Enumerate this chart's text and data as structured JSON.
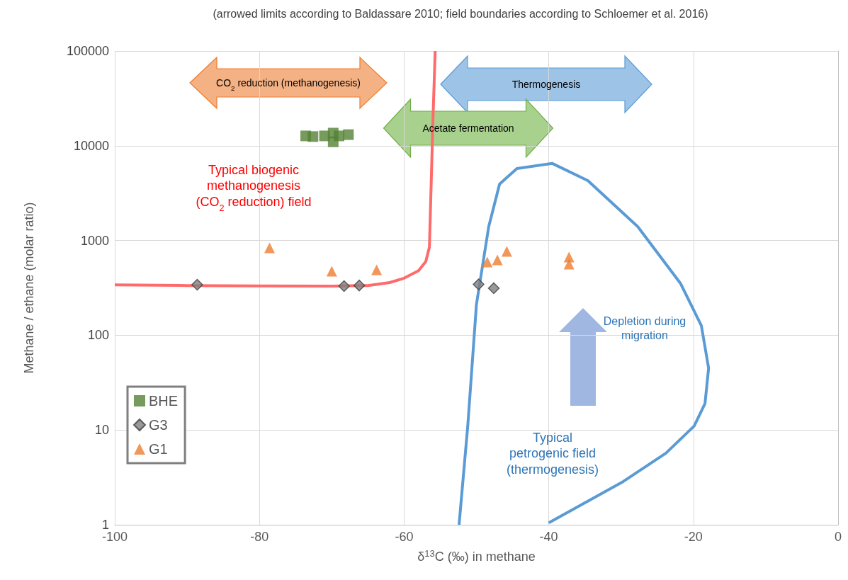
{
  "chart_data": {
    "type": "scatter",
    "title": "(arrowed limits according to Baldassare 2010; field boundaries according to Schloemer et al. 2016)",
    "xlabel": "δ$^{13}$C (‰) in methane",
    "ylabel": "Methane / ethane (molar ratio)",
    "xlim": [
      -100,
      0
    ],
    "xticks": [
      -100,
      -80,
      -60,
      -40,
      -20,
      0
    ],
    "ylim": [
      1,
      100000
    ],
    "yticks": [
      1,
      10,
      100,
      1000,
      10000,
      100000
    ],
    "log": "y",
    "grid": true,
    "legend": "bottom left",
    "series": [
      {
        "name": "BHE",
        "color": "#548235",
        "marker": "square",
        "x": [
          -73.6,
          -72.6,
          -71.0,
          -69.8,
          -69.8,
          -69.0,
          -67.7
        ],
        "values": [
          12700,
          12500,
          12700,
          13600,
          11000,
          12700,
          13100
        ]
      },
      {
        "name": "G3",
        "color": "#7f7f7f",
        "marker": "diamond",
        "x": [
          -88.6,
          -68.3,
          -66.2,
          -49.7,
          -47.6
        ],
        "values": [
          342,
          330,
          335,
          345,
          314
        ]
      },
      {
        "name": "G1",
        "color": "#ed7d31",
        "marker": "triangle",
        "x": [
          -78.6,
          -70.0,
          -63.8,
          -48.5,
          -47.1,
          -45.8,
          -37.2,
          -37.2
        ],
        "values": [
          836,
          474,
          490,
          593,
          624,
          767,
          668,
          562
        ]
      },
      {
        "type": "line",
        "color": "#ff6b6b",
        "marker": "none",
        "x": [
          -100,
          -90,
          -80,
          -70,
          -65,
          -62,
          -60,
          -58,
          -57,
          -56.5,
          -56.3,
          -56,
          -55.7
        ],
        "values": [
          340,
          335,
          332,
          330,
          335,
          360,
          400,
          480,
          600,
          850,
          3000,
          20000,
          100000
        ]
      },
      {
        "type": "line",
        "color": "#5b9bd5",
        "marker": "none",
        "x": [
          -52.4,
          -51.2,
          -50.0,
          -48.3,
          -46.8,
          -44.4,
          -39.5,
          -34.6,
          -27.7,
          -21.8,
          -18.9,
          -17.9,
          -18.4,
          -19.9,
          -23.8,
          -29.7,
          -40.0
        ],
        "values": [
          1,
          11,
          211,
          1400,
          3940,
          5750,
          6500,
          4290,
          1400,
          354,
          126,
          45,
          19,
          11,
          5.7,
          2.86,
          1.05
        ]
      }
    ],
    "annotations": [
      "CO$_{2}$ reduction (methanogenesis)",
      "Thermogenesis",
      "Acetate fermentation",
      "Typical biogenic\nmethanogenesis\n(CO$_{2}$ reduction) field",
      "Depletion during\nmigration",
      "Typical\npetrogenic  field\n(thermogenesis)"
    ]
  }
}
